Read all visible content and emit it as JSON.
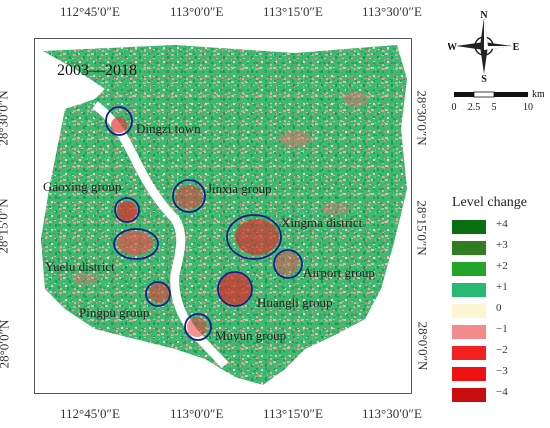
{
  "map": {
    "period": "2003—2018",
    "top_ticks": [
      "112°45′0″E",
      "113°0′0″E",
      "113°15′0″E",
      "113°30′0″E"
    ],
    "bottom_ticks": [
      "112°45′0″E",
      "113°0′0″E",
      "113°15′0″E",
      "113°30′0″E"
    ],
    "left_ticks": [
      "28°30′0″N",
      "28°15′0″N",
      "28°0′0″N"
    ],
    "right_ticks": [
      "28°30′0″N",
      "28°15′0″N",
      "28°0′0″N"
    ],
    "places": [
      {
        "name": "Dingzi town"
      },
      {
        "name": "Gaoxing group"
      },
      {
        "name": "Jinxia group"
      },
      {
        "name": "Xingma district"
      },
      {
        "name": "Yuelu district"
      },
      {
        "name": "Airport group"
      },
      {
        "name": "Huangli  group"
      },
      {
        "name": "Pingpu group"
      },
      {
        "name": "Muyun group"
      }
    ]
  },
  "compass": {
    "n": "N",
    "s": "S",
    "e": "E",
    "w": "W"
  },
  "scale": {
    "labels": [
      "0",
      "2.5",
      "5",
      "10"
    ],
    "unit": "km"
  },
  "legend": {
    "title": "Level change",
    "items": [
      {
        "label": "+4",
        "color": "#0a6e12"
      },
      {
        "label": "+3",
        "color": "#2f7d1f"
      },
      {
        "label": "+2",
        "color": "#22a52a"
      },
      {
        "label": "+1",
        "color": "#27b873"
      },
      {
        "label": "0",
        "color": "#fbf6cf"
      },
      {
        "label": "−1",
        "color": "#f28c8c"
      },
      {
        "label": "−2",
        "color": "#f22020"
      },
      {
        "label": "−3",
        "color": "#ee1212"
      },
      {
        "label": "−4",
        "color": "#c70d0d"
      }
    ]
  }
}
